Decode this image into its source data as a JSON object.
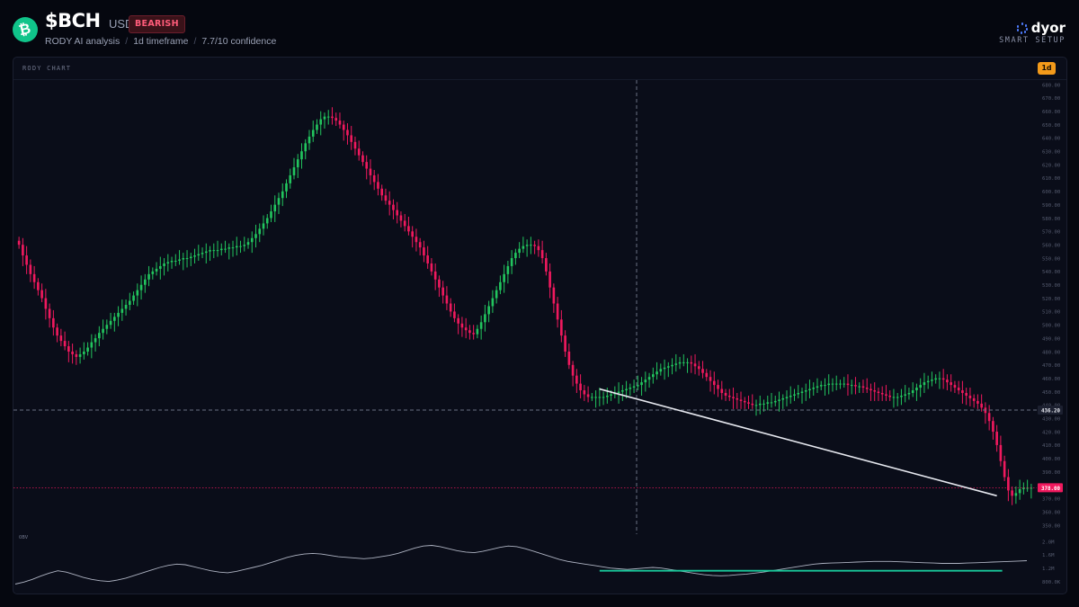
{
  "header": {
    "logo_symbol": "₿",
    "ticker": "$BCH",
    "quote": "USDT",
    "sentiment_badge": "BEARISH",
    "sub": {
      "analysis": "RODY AI analysis",
      "timeframe": "1d timeframe",
      "confidence": "7.7/10 confidence"
    }
  },
  "brand": {
    "name": "dyor",
    "tagline": "SMART SETUP"
  },
  "panel": {
    "title": "RODY CHART",
    "timeframe_pill": "1d"
  },
  "colors": {
    "bull": "#22c55e",
    "bear": "#f0195e",
    "background": "#05070f",
    "panel": "#0a0d19",
    "trendline": "#e6e8ef",
    "obv_trend": "#19c79a",
    "crosshair": "#6b7184"
  },
  "chart_data": {
    "type": "candlestick",
    "timeframe": "1d",
    "ylim": [
      350,
      680
    ],
    "y_ticks": [
      680,
      670,
      660,
      650,
      640,
      630,
      620,
      610,
      600,
      590,
      580,
      570,
      560,
      550,
      540,
      530,
      520,
      510,
      500,
      490,
      480,
      470,
      460,
      450,
      440,
      430,
      420,
      410,
      400,
      390,
      380,
      370,
      360,
      350
    ],
    "y_tick_labels": [
      "680.00",
      "670.00",
      "660.00",
      "650.00",
      "640.00",
      "630.00",
      "620.00",
      "610.00",
      "600.00",
      "590.00",
      "580.00",
      "570.00",
      "560.00",
      "550.00",
      "540.00",
      "530.00",
      "520.00",
      "510.00",
      "500.00",
      "490.00",
      "480.00",
      "470.00",
      "460.00",
      "450.00",
      "440.00",
      "430.00",
      "420.00",
      "410.00",
      "400.00",
      "390.00",
      "380.00",
      "370.00",
      "360.00",
      "350.00"
    ],
    "crosshair_price": 436.2,
    "crosshair_label": "436.20",
    "last_price": 378.0,
    "last_price_label": "378.00",
    "close": [
      560,
      552,
      545,
      538,
      532,
      526,
      520,
      512,
      505,
      498,
      492,
      488,
      484,
      480,
      478,
      476,
      478,
      480,
      483,
      487,
      490,
      494,
      497,
      500,
      503,
      506,
      509,
      512,
      515,
      518,
      522,
      526,
      530,
      534,
      538,
      540,
      542,
      544,
      546,
      547,
      548,
      548,
      549,
      550,
      550,
      551,
      552,
      553,
      554,
      555,
      556,
      556,
      556,
      557,
      557,
      558,
      558,
      559,
      559,
      560,
      562,
      565,
      568,
      572,
      576,
      580,
      585,
      590,
      595,
      600,
      606,
      612,
      618,
      624,
      630,
      636,
      641,
      646,
      650,
      654,
      656,
      656,
      655,
      653,
      650,
      646,
      642,
      637,
      632,
      627,
      622,
      617,
      612,
      607,
      602,
      597,
      593,
      590,
      586,
      582,
      578,
      574,
      570,
      566,
      562,
      558,
      552,
      546,
      540,
      534,
      528,
      522,
      516,
      510,
      505,
      501,
      498,
      496,
      494,
      493,
      497,
      502,
      508,
      514,
      520,
      526,
      532,
      538,
      544,
      550,
      554,
      557,
      559,
      560,
      560,
      559,
      556,
      550,
      540,
      528,
      516,
      504,
      492,
      480,
      470,
      462,
      456,
      451,
      448,
      446,
      446,
      446,
      446,
      446,
      447,
      448,
      449,
      450,
      451,
      452,
      453,
      454,
      455,
      457,
      459,
      461,
      463,
      465,
      467,
      468,
      469,
      470,
      471,
      472,
      472,
      472,
      471,
      469,
      467,
      464,
      461,
      458,
      455,
      452,
      449,
      447,
      446,
      445,
      444,
      443,
      442,
      441,
      440,
      440,
      441,
      441,
      442,
      442,
      443,
      444,
      445,
      446,
      447,
      448,
      449,
      450,
      451,
      452,
      453,
      454,
      455,
      455,
      456,
      456,
      456,
      456,
      456,
      455,
      455,
      454,
      454,
      453,
      452,
      451,
      450,
      449,
      448,
      447,
      446,
      446,
      446,
      447,
      448,
      449,
      451,
      453,
      455,
      457,
      458,
      459,
      460,
      460,
      459,
      457,
      455,
      453,
      451,
      449,
      447,
      445,
      443,
      441,
      438,
      434,
      428,
      420,
      410,
      398,
      386,
      376,
      372,
      374,
      377,
      378,
      378,
      378
    ],
    "obv_x_end_label": "2.0M",
    "obv_tick_labels": [
      "2.0M",
      "1.6M",
      "1.2M",
      "800.0K"
    ],
    "obv_values": [
      0.72,
      0.78,
      0.86,
      0.96,
      1.05,
      1.12,
      1.08,
      1.0,
      0.92,
      0.86,
      0.82,
      0.8,
      0.84,
      0.9,
      0.98,
      1.06,
      1.14,
      1.22,
      1.28,
      1.32,
      1.3,
      1.24,
      1.18,
      1.12,
      1.08,
      1.06,
      1.1,
      1.16,
      1.22,
      1.28,
      1.36,
      1.44,
      1.52,
      1.58,
      1.62,
      1.64,
      1.62,
      1.58,
      1.54,
      1.52,
      1.5,
      1.48,
      1.5,
      1.54,
      1.58,
      1.64,
      1.72,
      1.8,
      1.86,
      1.88,
      1.84,
      1.78,
      1.72,
      1.68,
      1.66,
      1.7,
      1.76,
      1.82,
      1.86,
      1.84,
      1.78,
      1.7,
      1.62,
      1.54,
      1.46,
      1.4,
      1.36,
      1.32,
      1.28,
      1.24,
      1.2,
      1.18,
      1.16,
      1.18,
      1.2,
      1.22,
      1.2,
      1.16,
      1.12,
      1.08,
      1.04,
      1.0,
      0.98,
      0.97,
      0.98,
      1.0,
      1.02,
      1.05,
      1.08,
      1.12,
      1.16,
      1.2,
      1.24,
      1.28,
      1.32,
      1.34,
      1.35,
      1.36,
      1.37,
      1.38,
      1.39,
      1.4,
      1.4,
      1.4,
      1.39,
      1.38,
      1.37,
      1.36,
      1.35,
      1.34,
      1.34,
      1.34,
      1.35,
      1.36,
      1.37,
      1.38,
      1.39,
      1.4,
      1.41,
      1.42
    ],
    "overlays": [
      {
        "type": "trendline",
        "from": [
          152,
          452
        ],
        "to": [
          256,
          372
        ]
      },
      {
        "type": "obv_trendline",
        "from_price": 1.12,
        "to_price": 1.12
      }
    ],
    "indicators": [
      {
        "name": "OBV"
      }
    ]
  }
}
